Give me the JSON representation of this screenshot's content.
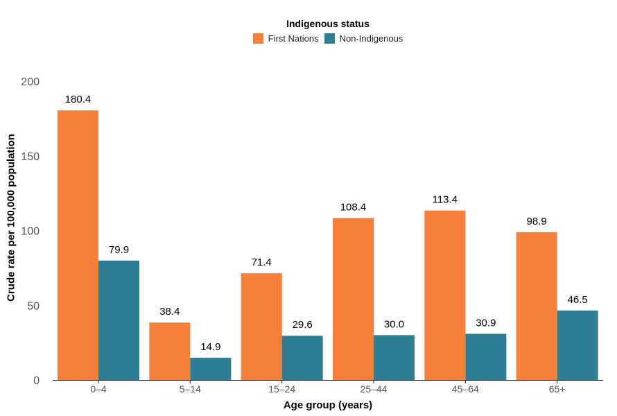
{
  "chart_data": {
    "type": "bar",
    "legend": {
      "title": "Indigenous status",
      "placement": "top-center"
    },
    "categories": [
      "0–4",
      "5–14",
      "15–24",
      "25–44",
      "45–64",
      "65+"
    ],
    "series": [
      {
        "name": "First Nations",
        "color": "#f5803a",
        "values": [
          180.4,
          38.4,
          71.4,
          108.4,
          113.4,
          98.9
        ]
      },
      {
        "name": "Non-Indigenous",
        "color": "#2e7f96",
        "values": [
          79.9,
          14.9,
          29.6,
          30.0,
          30.9,
          46.5
        ]
      }
    ],
    "data_labels": [
      [
        "180.4",
        "38.4",
        "71.4",
        "108.4",
        "113.4",
        "98.9"
      ],
      [
        "79.9",
        "14.9",
        "29.6",
        "30.0",
        "30.9",
        "46.5"
      ]
    ],
    "yticks": [
      "0",
      "50",
      "100",
      "150",
      "200"
    ],
    "ylim": [
      0,
      200
    ],
    "xlabel": "Age group (years)",
    "ylabel": "Crude rate per 100,000 population",
    "grid": false
  }
}
